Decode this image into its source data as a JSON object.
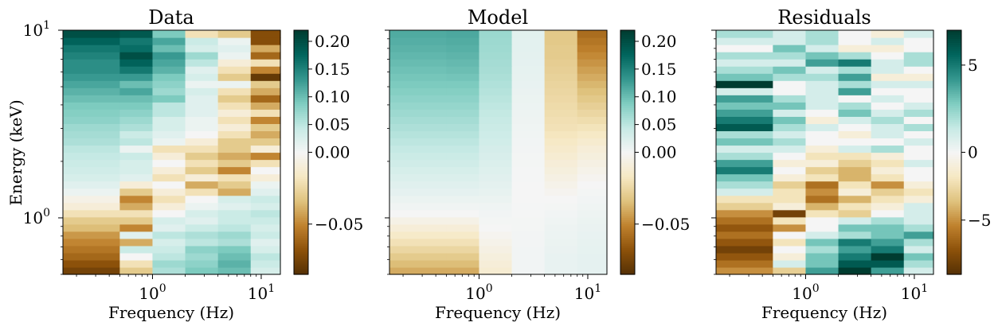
{
  "chart_data": [
    {
      "type": "heatmap",
      "title": "Data",
      "xlabel": "Frequency (Hz)",
      "ylabel": "Energy (keV)",
      "x_scale": "log",
      "y_scale": "log",
      "xlim": [
        0.15,
        15
      ],
      "ylim": [
        0.5,
        10
      ],
      "x_ticks": [
        {
          "value": 1,
          "base": "10",
          "exp": "0"
        },
        {
          "value": 10,
          "base": "10",
          "exp": "1"
        }
      ],
      "y_ticks": [
        {
          "value": 1,
          "base": "10",
          "exp": "0"
        },
        {
          "value": 10,
          "base": "10",
          "exp": "1"
        }
      ],
      "x_edges": [
        0.15,
        0.5,
        1.0,
        2.0,
        4.0,
        8.0,
        15.0
      ],
      "colorbar": {
        "vmin": -0.085,
        "vmax": 0.22,
        "ticks": [
          0.2,
          0.15,
          0.1,
          0.05,
          0.0,
          -0.05
        ],
        "tick_labels": [
          "0.20",
          "0.15",
          "0.10",
          "0.05",
          "0.00",
          "−0.05"
        ]
      },
      "values": [
        [
          -0.075,
          -0.03,
          0.06,
          0.09,
          0.1,
          0.03
        ],
        [
          -0.068,
          -0.02,
          0.07,
          0.08,
          0.11,
          0.04
        ],
        [
          -0.06,
          0.0,
          0.05,
          0.07,
          0.1,
          0.05
        ],
        [
          -0.055,
          0.04,
          0.04,
          0.08,
          0.09,
          0.03
        ],
        [
          -0.05,
          -0.04,
          0.03,
          0.05,
          0.06,
          0.02
        ],
        [
          -0.045,
          0.02,
          0.05,
          0.06,
          0.07,
          0.04
        ],
        [
          -0.035,
          -0.05,
          0.02,
          0.04,
          0.05,
          0.03
        ],
        [
          -0.03,
          -0.03,
          0.03,
          0.02,
          0.04,
          0.04
        ],
        [
          -0.02,
          -0.02,
          0.0,
          0.03,
          0.04,
          0.05
        ],
        [
          -0.01,
          -0.04,
          -0.01,
          0.01,
          0.02,
          0.03
        ],
        [
          -0.005,
          -0.05,
          -0.02,
          0.0,
          0.03,
          0.04
        ],
        [
          0.01,
          -0.03,
          -0.01,
          -0.02,
          -0.04,
          0.02
        ],
        [
          0.02,
          -0.01,
          0.0,
          -0.04,
          -0.03,
          0.01
        ],
        [
          0.03,
          0.02,
          -0.02,
          -0.01,
          -0.02,
          -0.01
        ],
        [
          0.035,
          0.03,
          -0.01,
          -0.03,
          -0.05,
          0.0
        ],
        [
          0.04,
          0.03,
          0.0,
          -0.02,
          -0.03,
          -0.02
        ],
        [
          0.045,
          0.04,
          -0.01,
          -0.03,
          -0.04,
          -0.05
        ],
        [
          0.05,
          0.01,
          -0.02,
          -0.02,
          -0.03,
          -0.01
        ],
        [
          0.06,
          0.05,
          0.01,
          -0.01,
          -0.03,
          -0.03
        ],
        [
          0.065,
          0.04,
          0.02,
          0.0,
          -0.02,
          -0.04
        ],
        [
          0.07,
          0.06,
          0.03,
          0.01,
          -0.01,
          -0.03
        ],
        [
          0.08,
          0.07,
          0.03,
          0.01,
          -0.02,
          -0.05
        ],
        [
          0.085,
          0.08,
          0.05,
          0.02,
          -0.01,
          -0.02
        ],
        [
          0.09,
          0.09,
          0.05,
          0.02,
          -0.02,
          -0.04
        ],
        [
          0.1,
          0.1,
          0.09,
          0.02,
          -0.03,
          -0.06
        ],
        [
          0.11,
          0.12,
          0.07,
          0.03,
          -0.02,
          -0.04
        ],
        [
          0.12,
          0.1,
          0.08,
          0.01,
          0.01,
          -0.03
        ],
        [
          0.13,
          0.13,
          0.09,
          0.03,
          -0.03,
          -0.08
        ],
        [
          0.14,
          0.16,
          0.11,
          0.02,
          -0.02,
          -0.05
        ],
        [
          0.14,
          0.18,
          0.12,
          0.05,
          -0.01,
          -0.02
        ],
        [
          0.15,
          0.2,
          0.13,
          0.07,
          0.01,
          -0.06
        ],
        [
          0.16,
          0.17,
          0.1,
          0.03,
          0.02,
          -0.04
        ],
        [
          0.18,
          0.16,
          0.12,
          0.04,
          0.01,
          -0.07
        ],
        [
          0.2,
          0.19,
          0.09,
          -0.02,
          -0.03,
          -0.07
        ]
      ]
    },
    {
      "type": "heatmap",
      "title": "Model",
      "xlabel": "Frequency (Hz)",
      "x_scale": "log",
      "y_scale": "log",
      "xlim": [
        0.15,
        15
      ],
      "ylim": [
        0.5,
        10
      ],
      "x_ticks": [
        {
          "value": 1,
          "base": "10",
          "exp": "0"
        },
        {
          "value": 10,
          "base": "10",
          "exp": "1"
        }
      ],
      "x_edges": [
        0.15,
        0.5,
        1.0,
        2.0,
        4.0,
        8.0,
        15.0
      ],
      "colorbar": {
        "vmin": -0.085,
        "vmax": 0.22,
        "ticks": [
          0.2,
          0.15,
          0.1,
          0.05,
          0.0,
          -0.05
        ],
        "tick_labels": [
          "0.20",
          "0.15",
          "0.10",
          "0.05",
          "0.00",
          "−0.05"
        ]
      },
      "values": [
        [
          -0.04,
          -0.04,
          -0.012,
          0.004,
          0.012,
          0.015
        ],
        [
          -0.035,
          -0.035,
          -0.01,
          0.004,
          0.012,
          0.015
        ],
        [
          -0.03,
          -0.03,
          -0.008,
          0.004,
          0.012,
          0.015
        ],
        [
          -0.025,
          -0.025,
          -0.006,
          0.004,
          0.011,
          0.014
        ],
        [
          -0.02,
          -0.02,
          -0.004,
          0.003,
          0.01,
          0.013
        ],
        [
          -0.015,
          -0.015,
          -0.002,
          0.003,
          0.009,
          0.012
        ],
        [
          -0.01,
          -0.01,
          0.0,
          0.002,
          0.008,
          0.011
        ],
        [
          -0.005,
          -0.005,
          0.002,
          0.002,
          0.006,
          0.01
        ],
        [
          0.0,
          0.0,
          0.004,
          0.001,
          0.004,
          0.008
        ],
        [
          0.005,
          0.005,
          0.006,
          0.001,
          0.002,
          0.006
        ],
        [
          0.01,
          0.01,
          0.01,
          0.0,
          0.0,
          0.004
        ],
        [
          0.015,
          0.015,
          0.013,
          0.0,
          -0.002,
          0.002
        ],
        [
          0.02,
          0.02,
          0.016,
          0.0,
          -0.004,
          0.0
        ],
        [
          0.025,
          0.025,
          0.019,
          0.001,
          -0.006,
          -0.002
        ],
        [
          0.03,
          0.03,
          0.022,
          0.001,
          -0.008,
          -0.004
        ],
        [
          0.035,
          0.035,
          0.025,
          0.002,
          -0.01,
          -0.006
        ],
        [
          0.04,
          0.04,
          0.028,
          0.002,
          -0.012,
          -0.008
        ],
        [
          0.045,
          0.045,
          0.031,
          0.003,
          -0.014,
          -0.01
        ],
        [
          0.05,
          0.05,
          0.034,
          0.004,
          -0.016,
          -0.013
        ],
        [
          0.055,
          0.055,
          0.037,
          0.005,
          -0.018,
          -0.016
        ],
        [
          0.06,
          0.06,
          0.04,
          0.006,
          -0.02,
          -0.019
        ],
        [
          0.065,
          0.065,
          0.043,
          0.007,
          -0.021,
          -0.022
        ],
        [
          0.07,
          0.07,
          0.046,
          0.008,
          -0.022,
          -0.025
        ],
        [
          0.075,
          0.075,
          0.049,
          0.009,
          -0.023,
          -0.028
        ],
        [
          0.08,
          0.08,
          0.052,
          0.01,
          -0.024,
          -0.031
        ],
        [
          0.085,
          0.085,
          0.055,
          0.011,
          -0.025,
          -0.034
        ],
        [
          0.09,
          0.09,
          0.058,
          0.012,
          -0.026,
          -0.037
        ],
        [
          0.094,
          0.095,
          0.061,
          0.013,
          -0.027,
          -0.04
        ],
        [
          0.098,
          0.1,
          0.063,
          0.014,
          -0.028,
          -0.043
        ],
        [
          0.102,
          0.104,
          0.065,
          0.015,
          -0.029,
          -0.046
        ],
        [
          0.106,
          0.108,
          0.067,
          0.016,
          -0.03,
          -0.049
        ],
        [
          0.11,
          0.112,
          0.069,
          0.017,
          -0.03,
          -0.052
        ],
        [
          0.113,
          0.115,
          0.07,
          0.017,
          -0.031,
          -0.055
        ],
        [
          0.116,
          0.118,
          0.071,
          0.018,
          -0.031,
          -0.058
        ]
      ]
    },
    {
      "type": "heatmap",
      "title": "Residuals",
      "xlabel": "Frequency (Hz)",
      "x_scale": "log",
      "y_scale": "log",
      "xlim": [
        0.15,
        15
      ],
      "ylim": [
        0.5,
        10
      ],
      "x_ticks": [
        {
          "value": 1,
          "base": "10",
          "exp": "0"
        },
        {
          "value": 10,
          "base": "10",
          "exp": "1"
        }
      ],
      "x_edges": [
        0.15,
        0.5,
        1.0,
        2.0,
        4.0,
        8.0,
        15.0
      ],
      "colorbar": {
        "vmin": -9,
        "vmax": 7,
        "ticks": [
          5,
          0,
          -5
        ],
        "tick_labels": [
          "5",
          "0",
          "−5"
        ]
      },
      "values": [
        [
          -5,
          -3,
          4,
          7,
          4,
          1
        ],
        [
          -6,
          1,
          3,
          6,
          6,
          2
        ],
        [
          -7,
          -1,
          3,
          5,
          7,
          3
        ],
        [
          -8,
          0,
          2,
          4,
          5,
          1
        ],
        [
          -7,
          -2,
          3,
          5,
          4,
          2
        ],
        [
          -6,
          0,
          1,
          2,
          3,
          4
        ],
        [
          -7,
          -5,
          0,
          3,
          3,
          2
        ],
        [
          -6,
          -2,
          0,
          1,
          2,
          1
        ],
        [
          -5,
          -8,
          -2,
          -3,
          0,
          1
        ],
        [
          -3,
          -1,
          -4,
          -2,
          -1,
          1
        ],
        [
          -2,
          -2,
          -6,
          -4,
          -2,
          -1
        ],
        [
          1,
          -2,
          -5,
          -1,
          -3,
          -2
        ],
        [
          2,
          -3,
          -6,
          -2,
          -5,
          -1
        ],
        [
          3,
          -1,
          -2,
          -4,
          -2,
          0
        ],
        [
          5,
          0,
          -3,
          -4,
          -1,
          0
        ],
        [
          4,
          -1,
          -1,
          -3,
          -2,
          1
        ],
        [
          2,
          0,
          -2,
          -2,
          -1,
          0
        ],
        [
          1,
          1,
          -1,
          1,
          2,
          0
        ],
        [
          3,
          2,
          0,
          0,
          0,
          1
        ],
        [
          2,
          1,
          0,
          -1,
          1,
          0
        ],
        [
          6,
          2,
          1,
          0,
          1,
          2
        ],
        [
          5,
          3,
          -1,
          1,
          2,
          0
        ],
        [
          4,
          1,
          0,
          3,
          1,
          2
        ],
        [
          3,
          3,
          1,
          2,
          0,
          1
        ],
        [
          4,
          2,
          1,
          0,
          1,
          0
        ],
        [
          1,
          0,
          1,
          4,
          0,
          0
        ],
        [
          7,
          0,
          1,
          2,
          1,
          1
        ],
        [
          3,
          2,
          2,
          4,
          -1,
          -1
        ],
        [
          2,
          3,
          1,
          2,
          1,
          0
        ],
        [
          1,
          1,
          4,
          5,
          1,
          2
        ],
        [
          2,
          2,
          3,
          2,
          0,
          2
        ],
        [
          0,
          3,
          1,
          -1,
          -1,
          0
        ],
        [
          1,
          1,
          2,
          0,
          1,
          0
        ],
        [
          2,
          1,
          2,
          0,
          -1,
          1
        ]
      ]
    }
  ]
}
